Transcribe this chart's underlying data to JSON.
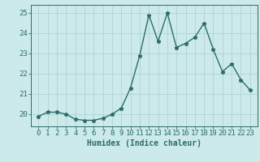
{
  "x": [
    0,
    1,
    2,
    3,
    4,
    5,
    6,
    7,
    8,
    9,
    10,
    11,
    12,
    13,
    14,
    15,
    16,
    17,
    18,
    19,
    20,
    21,
    22,
    23
  ],
  "y": [
    19.9,
    20.1,
    20.1,
    20.0,
    19.75,
    19.7,
    19.7,
    19.8,
    20.0,
    20.3,
    21.3,
    22.9,
    24.9,
    23.6,
    25.0,
    23.3,
    23.5,
    23.8,
    24.5,
    23.2,
    22.1,
    22.5,
    21.7,
    21.2
  ],
  "line_color": "#2e6b6b",
  "marker": "*",
  "markersize": 3.5,
  "linewidth": 1.0,
  "bg_color": "#cceaea",
  "grid_color": "#aacece",
  "xlabel": "Humidex (Indice chaleur)",
  "xlabel_fontsize": 7,
  "tick_fontsize": 6.5,
  "ylim": [
    19.4,
    25.4
  ],
  "yticks": [
    20,
    21,
    22,
    23,
    24,
    25
  ],
  "xticks": [
    0,
    1,
    2,
    3,
    4,
    5,
    6,
    7,
    8,
    9,
    10,
    11,
    12,
    13,
    14,
    15,
    16,
    17,
    18,
    19,
    20,
    21,
    22,
    23
  ]
}
